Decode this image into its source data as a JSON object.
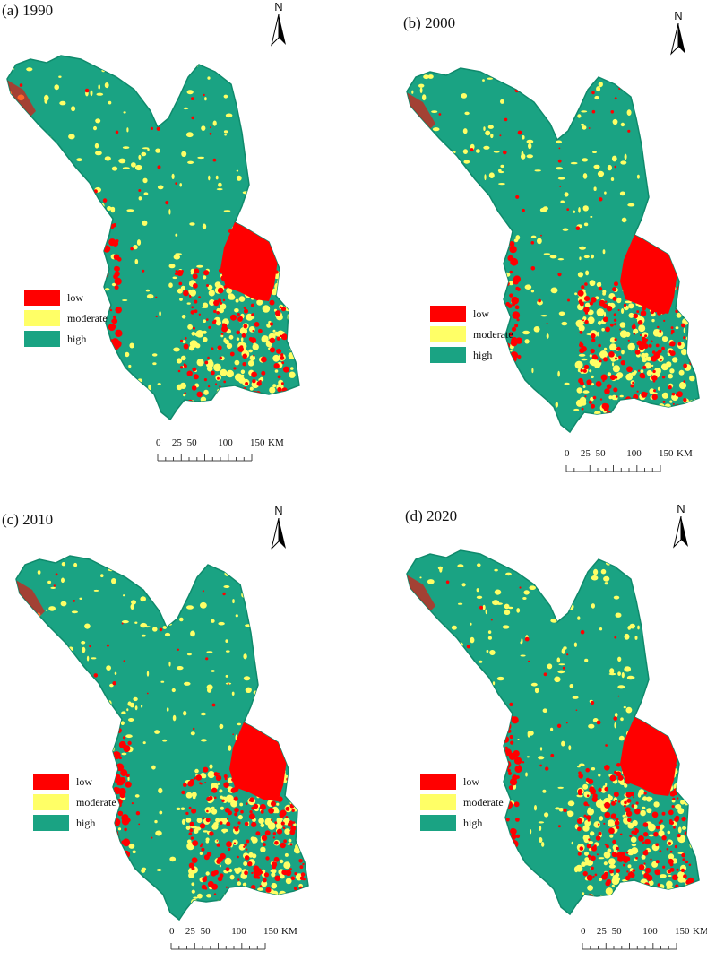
{
  "colors": {
    "low": "#ff0000",
    "moderate": "#ffff66",
    "high": "#1aa383",
    "high_dark": "#0f8a6c"
  },
  "north_label": "N",
  "legend": [
    {
      "label": "low",
      "color": "#ff0000"
    },
    {
      "label": "moderate",
      "color": "#ffff66"
    },
    {
      "label": "high",
      "color": "#1aa383"
    }
  ],
  "scale": {
    "ticks": [
      "0",
      "25",
      "50",
      "100",
      "150"
    ],
    "unit": "KM"
  },
  "panels": [
    {
      "title": "(a) 1990"
    },
    {
      "title": "(b) 2000"
    },
    {
      "title": "(c) 2010"
    },
    {
      "title": "(d) 2020"
    }
  ]
}
